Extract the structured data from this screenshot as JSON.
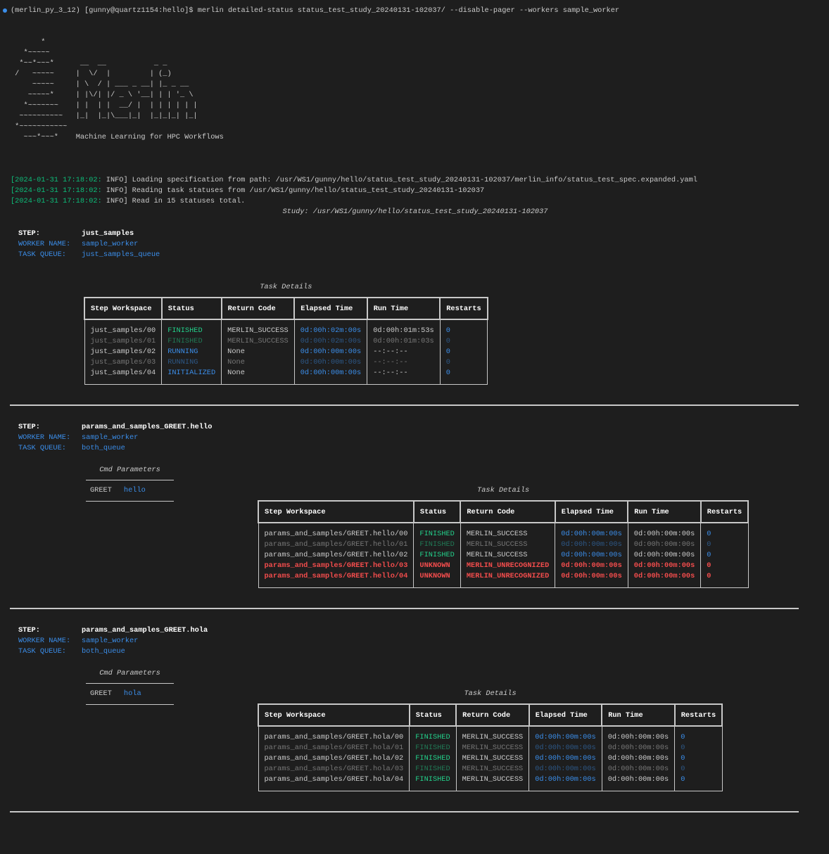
{
  "prompt": "(merlin_py_3_12) [gunny@quartz1154:hello]$ merlin detailed-status status_test_study_20240131-102037/ --disable-pager --workers sample_worker",
  "banner": {
    "art": [
      "       *",
      "   *~~~~~",
      "  *~~*~~~*      __  __           _ _",
      " /   ~~~~~     |  \\/  |         | (_)",
      "     ~~~~~     | \\  / | ___ _ __| |_ _ __",
      "    ~~~~~*     | |\\/| |/ _ \\ '__| | | '_ \\",
      "   *~~~~~~~    | |  | |  __/ |  | | | | | |",
      "  ~~~~~~~~~~   |_|  |_|\\___|_|  |_|_|_| |_|",
      " *~~~~~~~~~~~",
      "   ~~~*~~~*    "
    ],
    "tagline": "Machine Learning for HPC Workflows"
  },
  "logs": [
    {
      "time": "[2024-01-31 17:18:02:",
      "level": "INFO]",
      "message": "Loading specification from path: /usr/WS1/gunny/hello/status_test_study_20240131-102037/merlin_info/status_test_spec.expanded.yaml"
    },
    {
      "time": "[2024-01-31 17:18:02:",
      "level": "INFO]",
      "message": "Reading task statuses from /usr/WS1/gunny/hello/status_test_study_20240131-102037"
    },
    {
      "time": "[2024-01-31 17:18:02:",
      "level": "INFO]",
      "message": "Read in 15 statuses total."
    }
  ],
  "study": "Study: /usr/WS1/gunny/hello/status_test_study_20240131-102037",
  "labels": {
    "step": "STEP:",
    "worker": "WORKER NAME:",
    "queue": "TASK QUEUE:",
    "cmd_params": "Cmd Parameters",
    "task_details": "Task Details"
  },
  "columns": [
    "Step Workspace",
    "Status",
    "Return Code",
    "Elapsed Time",
    "Run Time",
    "Restarts"
  ],
  "column_colors": [
    "#cccccc",
    "#cccccc",
    "#cccccc",
    "#3b8eea",
    "#cccccc",
    "#3b8eea"
  ],
  "status_colors": {
    "FINISHED": "#23d18b",
    "RUNNING": "#3b8eea",
    "INITIALIZED": "#3b8eea",
    "UNKNOWN": "#f14c4c"
  },
  "error_status": "UNKNOWN",
  "error_color": "#f14c4c",
  "steps": [
    {
      "name": "just_samples",
      "worker": "sample_worker",
      "queue": "just_samples_queue",
      "params": [],
      "rows": [
        [
          "just_samples/00",
          "FINISHED",
          "MERLIN_SUCCESS",
          "0d:00h:02m:00s",
          "0d:00h:01m:53s",
          0
        ],
        [
          "just_samples/01",
          "FINISHED",
          "MERLIN_SUCCESS",
          "0d:00h:02m:00s",
          "0d:00h:01m:03s",
          0
        ],
        [
          "just_samples/02",
          "RUNNING",
          "None",
          "0d:00h:00m:00s",
          "--:--:--",
          0
        ],
        [
          "just_samples/03",
          "RUNNING",
          "None",
          "0d:00h:00m:00s",
          "--:--:--",
          0
        ],
        [
          "just_samples/04",
          "INITIALIZED",
          "None",
          "0d:00h:00m:00s",
          "--:--:--",
          0
        ]
      ]
    },
    {
      "name": "params_and_samples_GREET.hello",
      "worker": "sample_worker",
      "queue": "both_queue",
      "params": [
        [
          "GREET",
          "hello"
        ]
      ],
      "rows": [
        [
          "params_and_samples/GREET.hello/00",
          "FINISHED",
          "MERLIN_SUCCESS",
          "0d:00h:00m:00s",
          "0d:00h:00m:00s",
          0
        ],
        [
          "params_and_samples/GREET.hello/01",
          "FINISHED",
          "MERLIN_SUCCESS",
          "0d:00h:00m:00s",
          "0d:00h:00m:00s",
          0
        ],
        [
          "params_and_samples/GREET.hello/02",
          "FINISHED",
          "MERLIN_SUCCESS",
          "0d:00h:00m:00s",
          "0d:00h:00m:00s",
          0
        ],
        [
          "params_and_samples/GREET.hello/03",
          "UNKNOWN",
          "MERLIN_UNRECOGNIZED",
          "0d:00h:00m:00s",
          "0d:00h:00m:00s",
          0
        ],
        [
          "params_and_samples/GREET.hello/04",
          "UNKNOWN",
          "MERLIN_UNRECOGNIZED",
          "0d:00h:00m:00s",
          "0d:00h:00m:00s",
          0
        ]
      ]
    },
    {
      "name": "params_and_samples_GREET.hola",
      "worker": "sample_worker",
      "queue": "both_queue",
      "params": [
        [
          "GREET",
          "hola"
        ]
      ],
      "rows": [
        [
          "params_and_samples/GREET.hola/00",
          "FINISHED",
          "MERLIN_SUCCESS",
          "0d:00h:00m:00s",
          "0d:00h:00m:00s",
          0
        ],
        [
          "params_and_samples/GREET.hola/01",
          "FINISHED",
          "MERLIN_SUCCESS",
          "0d:00h:00m:00s",
          "0d:00h:00m:00s",
          0
        ],
        [
          "params_and_samples/GREET.hola/02",
          "FINISHED",
          "MERLIN_SUCCESS",
          "0d:00h:00m:00s",
          "0d:00h:00m:00s",
          0
        ],
        [
          "params_and_samples/GREET.hola/03",
          "FINISHED",
          "MERLIN_SUCCESS",
          "0d:00h:00m:00s",
          "0d:00h:00m:00s",
          0
        ],
        [
          "params_and_samples/GREET.hola/04",
          "FINISHED",
          "MERLIN_SUCCESS",
          "0d:00h:00m:00s",
          "0d:00h:00m:00s",
          0
        ]
      ]
    }
  ]
}
